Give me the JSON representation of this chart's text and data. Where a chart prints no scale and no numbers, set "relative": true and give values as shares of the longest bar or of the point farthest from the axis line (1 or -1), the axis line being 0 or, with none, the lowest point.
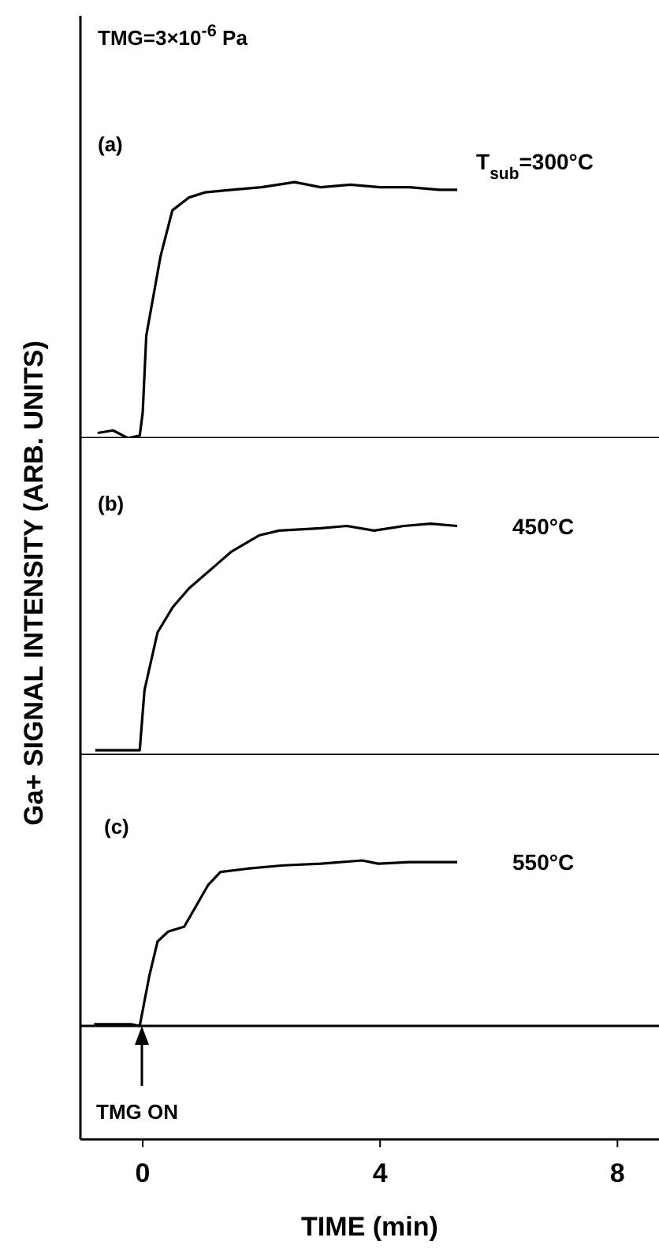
{
  "chart_data": [
    {
      "type": "line",
      "title": "TMG=3×10$^{-6}$ Pa",
      "annotations": [
        "(a)"
      ],
      "relative": true,
      "xlim": [
        -1.05,
        8.7
      ],
      "tick_labels": false,
      "marker": "none",
      "line_style": "solid",
      "series": [
        {
          "name": "T$_{sub}$=300°C",
          "color": "#000000",
          "x": [
            -0.76,
            -0.5,
            -0.25,
            -0.05,
            0,
            0.06,
            0.3,
            0.5,
            0.78,
            1.05,
            1.5,
            2,
            2.56,
            3,
            3.5,
            4,
            4.5,
            5,
            5.3
          ],
          "values": [
            0.02,
            0.03,
            0,
            0.01,
            0.1,
            0.4,
            0.71,
            0.89,
            0.94,
            0.96,
            0.97,
            0.98,
            1.0,
            0.98,
            0.99,
            0.98,
            0.98,
            0.97,
            0.97
          ]
        }
      ]
    },
    {
      "type": "line",
      "ylabel": "Ga+ SIGNAL INTENSITY (ARB. UNITS)",
      "annotations": [
        "(b)"
      ],
      "relative": true,
      "xlim": [
        -1.05,
        8.7
      ],
      "tick_labels": false,
      "marker": "none",
      "line_style": "solid",
      "series": [
        {
          "name": "450°C",
          "color": "#000000",
          "x": [
            -0.8,
            -0.5,
            -0.2,
            -0.05,
            0.03,
            0.25,
            0.51,
            0.78,
            1.23,
            1.5,
            1.97,
            2.3,
            3,
            3.44,
            3.9,
            4.4,
            4.85,
            5.3
          ],
          "values": [
            0.02,
            0.02,
            0.02,
            0.02,
            0.28,
            0.53,
            0.64,
            0.72,
            0.82,
            0.88,
            0.95,
            0.97,
            0.98,
            0.99,
            0.97,
            0.99,
            1.0,
            0.99
          ]
        }
      ]
    },
    {
      "type": "line",
      "xlabel": "TIME (min)",
      "annotations": [
        "(c)",
        "TMG ON"
      ],
      "relative": true,
      "xlim": [
        -1.05,
        8.7
      ],
      "xticks": [
        0,
        4,
        8
      ],
      "tick_labels": "x",
      "marker": "none",
      "line_style": "solid",
      "series": [
        {
          "name": "550°C",
          "color": "#000000",
          "x": [
            -0.82,
            -0.5,
            -0.2,
            -0.05,
            0.11,
            0.25,
            0.43,
            0.7,
            0.86,
            1.1,
            1.31,
            1.76,
            2.37,
            3,
            3.7,
            3.97,
            4.5,
            5.3
          ],
          "values": [
            0.01,
            0.01,
            0.01,
            0,
            0.3,
            0.51,
            0.57,
            0.6,
            0.7,
            0.85,
            0.93,
            0.95,
            0.97,
            0.98,
            1.0,
            0.98,
            0.99,
            0.99
          ]
        }
      ]
    }
  ]
}
